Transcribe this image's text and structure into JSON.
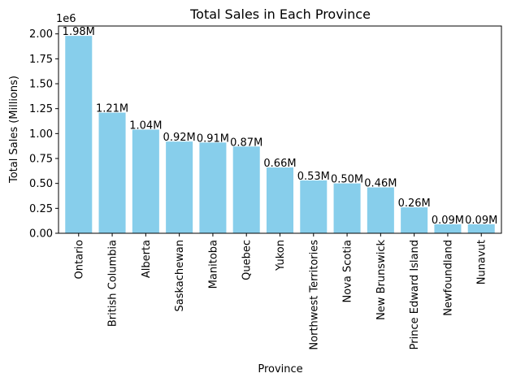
{
  "chart_data": {
    "type": "bar",
    "title": "Total Sales in Each Province",
    "xlabel": "Province",
    "ylabel": "Total Sales (Millions)",
    "y_offset_label": "1e6",
    "categories": [
      "Ontario",
      "British Columbia",
      "Alberta",
      "Saskachewan",
      "Manitoba",
      "Quebec",
      "Yukon",
      "Northwest Territories",
      "Nova Scotia",
      "New Brunswick",
      "Prince Edward Island",
      "Newfoundland",
      "Nunavut"
    ],
    "values": [
      1.98,
      1.21,
      1.04,
      0.92,
      0.91,
      0.87,
      0.66,
      0.53,
      0.5,
      0.46,
      0.26,
      0.09,
      0.09
    ],
    "value_labels": [
      "1.98M",
      "1.21M",
      "1.04M",
      "0.92M",
      "0.91M",
      "0.87M",
      "0.66M",
      "0.53M",
      "0.50M",
      "0.46M",
      "0.26M",
      "0.09M",
      "0.09M"
    ],
    "yticks": [
      0.0,
      0.25,
      0.5,
      0.75,
      1.0,
      1.25,
      1.5,
      1.75,
      2.0
    ],
    "ytick_labels": [
      "0.00",
      "0.25",
      "0.50",
      "0.75",
      "1.00",
      "1.25",
      "1.50",
      "1.75",
      "2.00"
    ],
    "ylim": [
      0,
      2.079
    ],
    "bar_color": "#87CEEB",
    "grid": false,
    "legend": "none"
  }
}
